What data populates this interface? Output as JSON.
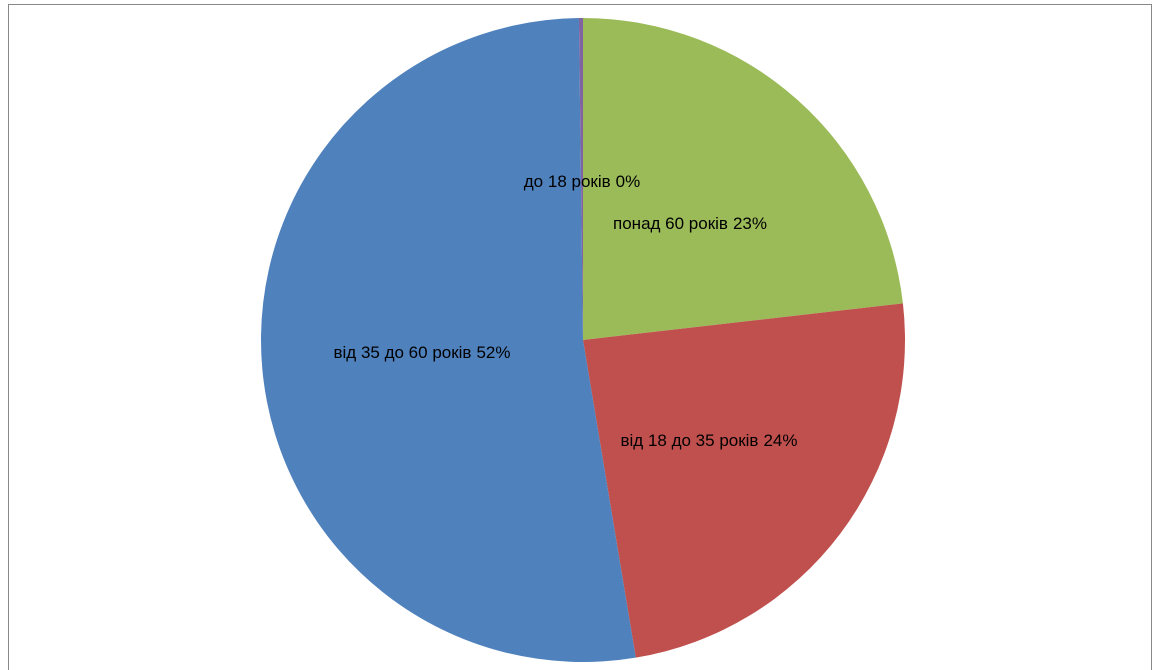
{
  "chart_data": {
    "type": "pie",
    "categories": [
      "понад 60 років",
      "від 18 до 35 років",
      "від 35 до 60 років",
      "до 18 років"
    ],
    "values": [
      23,
      24,
      52,
      0.2
    ],
    "value_labels": [
      "23%",
      "24%",
      "52%",
      "0%"
    ],
    "colors": [
      "#9bbb59",
      "#c0504d",
      "#4f81bd",
      "#8064a2"
    ]
  }
}
